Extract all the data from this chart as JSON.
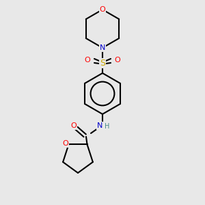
{
  "bg_color": "#e8e8e8",
  "bond_color": "#000000",
  "atom_colors": {
    "O": "#ff0000",
    "N": "#0000cc",
    "S": "#ccaa00",
    "H": "#448888",
    "C": "#000000"
  },
  "figsize": [
    3.0,
    3.0
  ],
  "dpi": 100,
  "lw": 1.5
}
